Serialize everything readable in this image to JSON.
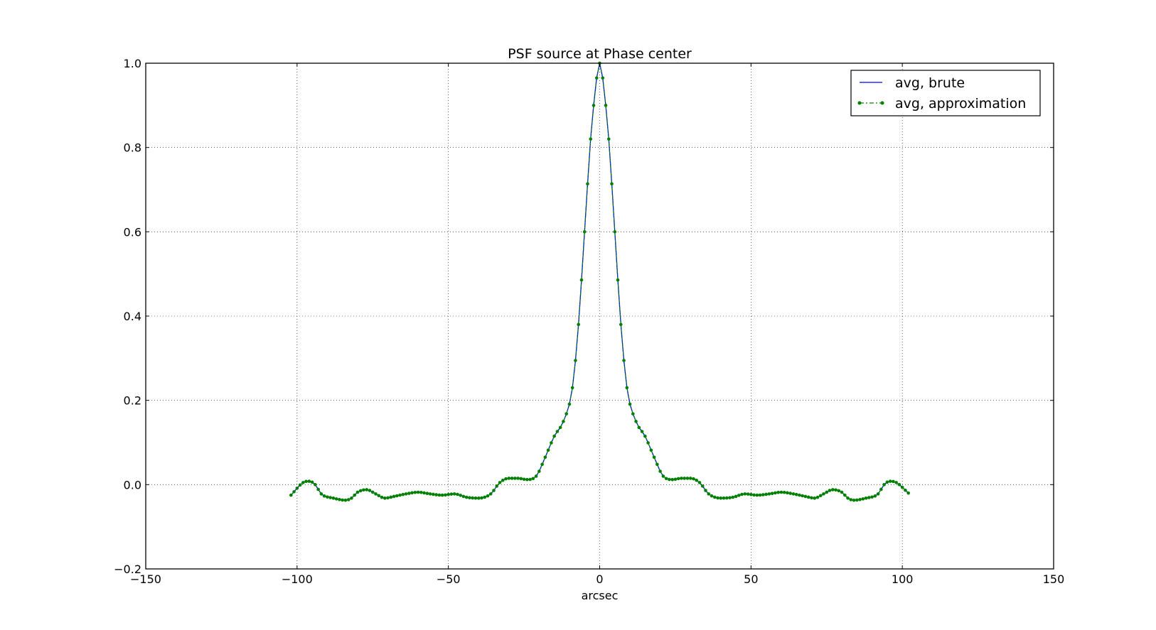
{
  "chart_data": {
    "type": "line",
    "title": "PSF source at Phase center",
    "xlabel": "arcsec",
    "ylabel": "",
    "xlim": [
      -150,
      150
    ],
    "ylim": [
      -0.2,
      1.0
    ],
    "xticks": [
      -150,
      -100,
      -50,
      0,
      50,
      100,
      150
    ],
    "yticks": [
      -0.2,
      0.0,
      0.2,
      0.4,
      0.6,
      0.8,
      1.0
    ],
    "xtick_labels": [
      "−150",
      "−100",
      "−50",
      "0",
      "50",
      "100",
      "150"
    ],
    "ytick_labels": [
      "−0.2",
      "0.0",
      "0.2",
      "0.4",
      "0.6",
      "0.8",
      "1.0"
    ],
    "grid": true,
    "legend_position": "top-right",
    "x_step": 1,
    "series": [
      {
        "name": "avg, brute",
        "color": "#0000ff",
        "style": "solid",
        "x": [
          -102,
          -98,
          -96,
          -94,
          -92,
          -88,
          -84,
          -82,
          -80,
          -77,
          -74,
          -71,
          -68,
          -64,
          -60,
          -56,
          -52,
          -48,
          -44,
          -40,
          -36,
          -33,
          -30,
          -27,
          -24,
          -21,
          -18,
          -15,
          -12,
          -9,
          -7,
          -5,
          -3,
          -2,
          -1,
          0,
          1,
          2,
          3,
          5,
          7,
          9,
          12,
          15,
          18,
          21,
          24,
          27,
          30,
          33,
          36,
          40,
          44,
          48,
          52,
          56,
          60,
          64,
          68,
          71,
          74,
          77,
          80,
          82,
          84,
          88,
          92,
          94,
          96,
          98,
          102
        ],
        "y": [
          -0.025,
          0.005,
          0.008,
          0.0,
          -0.022,
          -0.032,
          -0.037,
          -0.032,
          -0.018,
          -0.012,
          -0.022,
          -0.032,
          -0.028,
          -0.022,
          -0.018,
          -0.022,
          -0.025,
          -0.022,
          -0.03,
          -0.032,
          -0.022,
          0.005,
          0.015,
          0.015,
          0.012,
          0.02,
          0.065,
          0.115,
          0.15,
          0.23,
          0.38,
          0.6,
          0.82,
          0.9,
          0.965,
          1.0,
          0.965,
          0.9,
          0.82,
          0.6,
          0.38,
          0.23,
          0.15,
          0.115,
          0.065,
          0.02,
          0.012,
          0.015,
          0.015,
          0.005,
          -0.022,
          -0.032,
          -0.03,
          -0.022,
          -0.025,
          -0.022,
          -0.018,
          -0.022,
          -0.028,
          -0.032,
          -0.022,
          -0.012,
          -0.018,
          -0.032,
          -0.037,
          -0.032,
          -0.022,
          0.0,
          0.008,
          0.005,
          -0.02
        ]
      },
      {
        "name": "avg, approximation",
        "color": "#008000",
        "style": "dashdot-marker",
        "x": [
          -102,
          -98,
          -96,
          -94,
          -92,
          -88,
          -84,
          -82,
          -80,
          -77,
          -74,
          -71,
          -68,
          -64,
          -60,
          -56,
          -52,
          -48,
          -44,
          -40,
          -36,
          -33,
          -30,
          -27,
          -24,
          -21,
          -18,
          -15,
          -12,
          -9,
          -7,
          -5,
          -3,
          -2,
          -1,
          0,
          1,
          2,
          3,
          5,
          7,
          9,
          12,
          15,
          18,
          21,
          24,
          27,
          30,
          33,
          36,
          40,
          44,
          48,
          52,
          56,
          60,
          64,
          68,
          71,
          74,
          77,
          80,
          82,
          84,
          88,
          92,
          94,
          96,
          98,
          102
        ],
        "y": [
          -0.025,
          0.005,
          0.008,
          0.0,
          -0.022,
          -0.032,
          -0.037,
          -0.032,
          -0.018,
          -0.012,
          -0.022,
          -0.032,
          -0.028,
          -0.022,
          -0.018,
          -0.022,
          -0.025,
          -0.022,
          -0.03,
          -0.032,
          -0.022,
          0.005,
          0.015,
          0.015,
          0.012,
          0.02,
          0.065,
          0.115,
          0.15,
          0.23,
          0.38,
          0.6,
          0.82,
          0.9,
          0.965,
          1.0,
          0.965,
          0.9,
          0.82,
          0.6,
          0.38,
          0.23,
          0.15,
          0.115,
          0.065,
          0.02,
          0.012,
          0.015,
          0.015,
          0.005,
          -0.022,
          -0.032,
          -0.03,
          -0.022,
          -0.025,
          -0.022,
          -0.018,
          -0.022,
          -0.028,
          -0.032,
          -0.022,
          -0.012,
          -0.018,
          -0.032,
          -0.037,
          -0.032,
          -0.022,
          0.0,
          0.008,
          0.005,
          -0.02
        ]
      }
    ]
  }
}
